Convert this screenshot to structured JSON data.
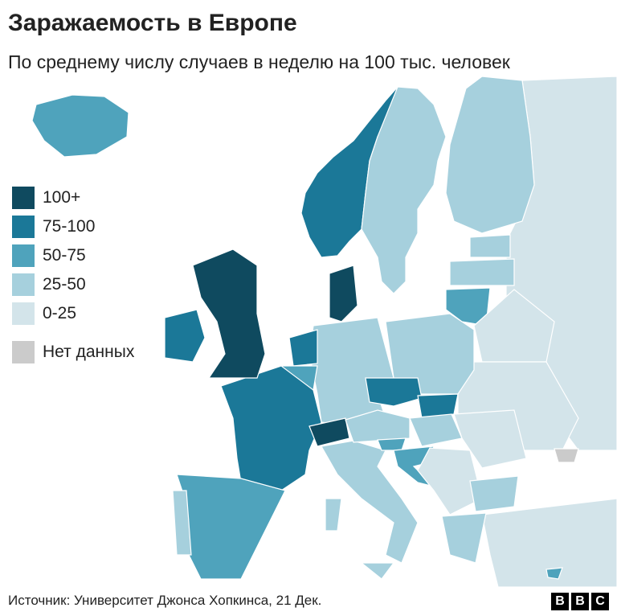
{
  "header": {
    "title": "Заражаемость в Европе",
    "subtitle": "По среднему числу случаев в неделю на 100 тыс. человек"
  },
  "legend": {
    "items": [
      {
        "label": "100+",
        "color": "#0f4a5f"
      },
      {
        "label": "75-100",
        "color": "#1b7898"
      },
      {
        "label": "50-75",
        "color": "#4fa3bc"
      },
      {
        "label": "25-50",
        "color": "#a6d0dd"
      },
      {
        "label": "0-25",
        "color": "#d3e4ea"
      },
      {
        "label": "Нет данных",
        "color": "#cbcbcb"
      }
    ]
  },
  "footer": {
    "source": "Источник: Университет Джонса Хопкинса, 21 Дек.",
    "logo": [
      "B",
      "B",
      "C"
    ]
  }
}
